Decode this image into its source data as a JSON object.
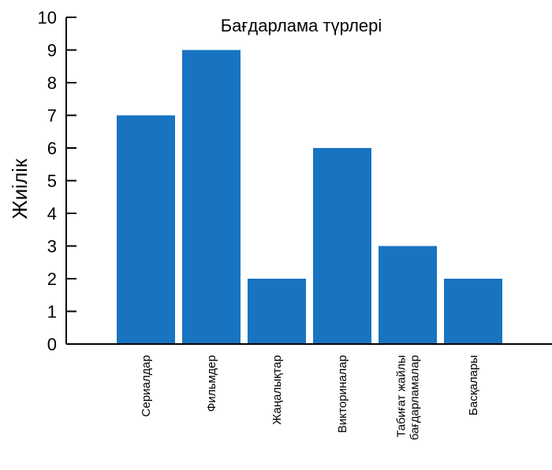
{
  "chart_data": {
    "type": "bar",
    "title": "Бағдарлама түрлері",
    "xlabel": "",
    "ylabel": "Жиілік",
    "ylim": [
      0,
      10
    ],
    "yticks": [
      "0",
      "1",
      "2",
      "3",
      "4",
      "5",
      "6",
      "7",
      "8",
      "9",
      "10"
    ],
    "categories": [
      [
        "Сериалдар"
      ],
      [
        "Фильмдер"
      ],
      [
        "Жаңалықтар"
      ],
      [
        "Викториналар"
      ],
      [
        "Табиғат жайлы",
        "бағдарламалар"
      ],
      [
        "Басқалары"
      ]
    ],
    "values": [
      7,
      9,
      2,
      6,
      3,
      2
    ],
    "bar_color": "#1874c1",
    "grid": false,
    "legend": "none"
  }
}
